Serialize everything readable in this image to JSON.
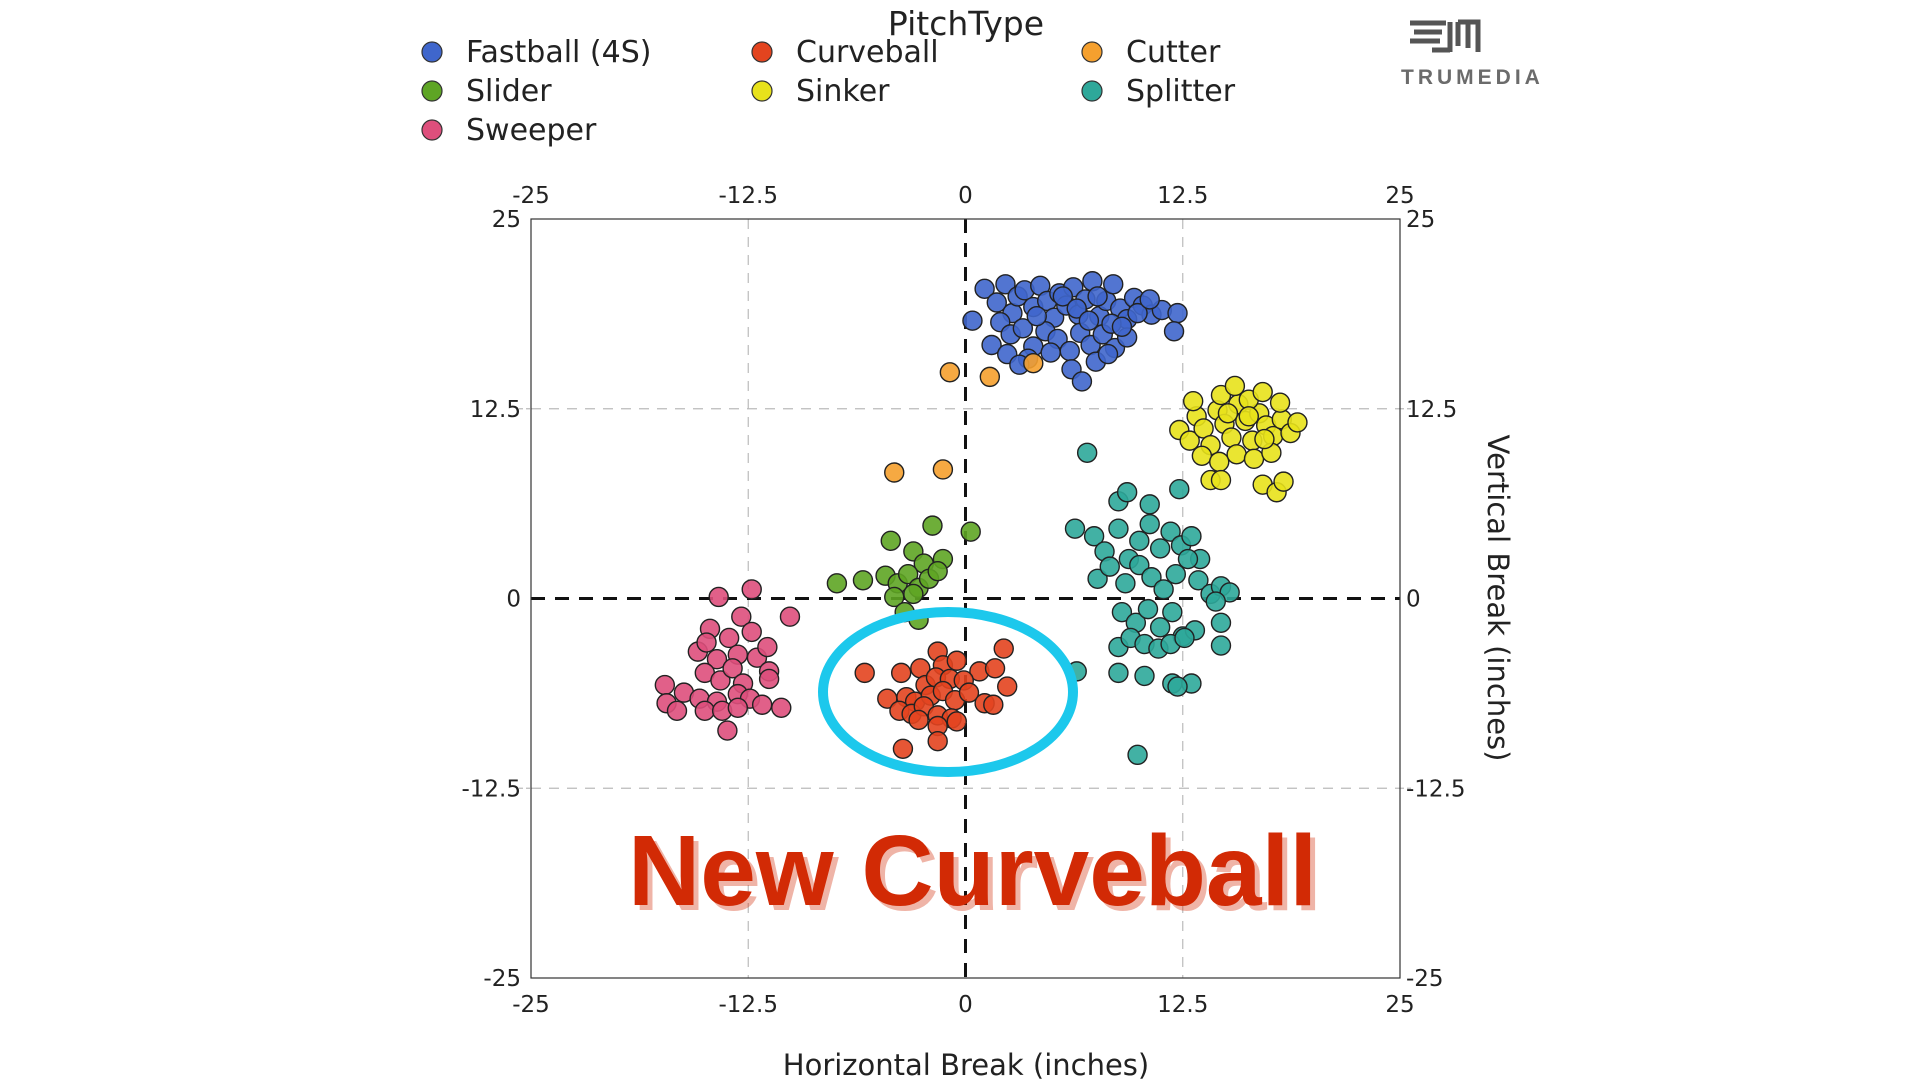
{
  "chart_data": {
    "type": "scatter",
    "legend": {
      "title": "PitchType",
      "position": "top",
      "entries": [
        {
          "name": "Fastball (4S)",
          "color": "#3f66cc"
        },
        {
          "name": "Curveball",
          "color": "#e3441f"
        },
        {
          "name": "Cutter",
          "color": "#f5a02e"
        },
        {
          "name": "Slider",
          "color": "#5ea524"
        },
        {
          "name": "Sinker",
          "color": "#e8e21b"
        },
        {
          "name": "Splitter",
          "color": "#2ea89a"
        },
        {
          "name": "Sweeper",
          "color": "#de4f7c"
        }
      ]
    },
    "xlabel": "Horizontal Break (inches)",
    "ylabel": "Vertical Break (inches)",
    "xlim": [
      -25,
      25
    ],
    "ylim": [
      -25,
      25
    ],
    "x_ticks": [
      "-25",
      "-12.5",
      "0",
      "12.5",
      "25"
    ],
    "y_ticks": [
      "25",
      "12.5",
      "0",
      "-12.5",
      "-25"
    ],
    "grid": true,
    "zero_lines": "dashed",
    "annotation": {
      "text": "New Curveball",
      "circled_series": "Curveball"
    },
    "logo_text": "TRUMEDIA",
    "series": [
      {
        "name": "Fastball (4S)",
        "color": "#3f66cc",
        "points": [
          [
            0.4,
            18.3
          ],
          [
            1.1,
            20.4
          ],
          [
            1.8,
            19.5
          ],
          [
            2.3,
            20.7
          ],
          [
            2.7,
            18.8
          ],
          [
            3.0,
            19.9
          ],
          [
            3.4,
            20.3
          ],
          [
            3.9,
            19.2
          ],
          [
            4.3,
            20.6
          ],
          [
            4.7,
            19.6
          ],
          [
            5.1,
            18.5
          ],
          [
            5.4,
            20.1
          ],
          [
            5.8,
            19.3
          ],
          [
            6.2,
            20.5
          ],
          [
            6.5,
            18.7
          ],
          [
            6.9,
            19.7
          ],
          [
            7.3,
            20.9
          ],
          [
            7.7,
            18.6
          ],
          [
            8.1,
            19.6
          ],
          [
            8.5,
            20.7
          ],
          [
            8.9,
            19.1
          ],
          [
            9.3,
            18.4
          ],
          [
            9.7,
            19.8
          ],
          [
            10.2,
            19.3
          ],
          [
            10.7,
            18.7
          ],
          [
            11.3,
            19.0
          ],
          [
            12.2,
            18.8
          ],
          [
            12.0,
            17.6
          ],
          [
            2.0,
            18.2
          ],
          [
            2.6,
            17.4
          ],
          [
            3.3,
            17.8
          ],
          [
            3.9,
            16.6
          ],
          [
            4.6,
            17.6
          ],
          [
            5.3,
            17.1
          ],
          [
            6.0,
            16.3
          ],
          [
            6.6,
            17.5
          ],
          [
            7.2,
            16.7
          ],
          [
            7.9,
            17.4
          ],
          [
            8.6,
            16.5
          ],
          [
            9.3,
            17.2
          ],
          [
            1.5,
            16.7
          ],
          [
            2.4,
            16.1
          ],
          [
            3.6,
            15.8
          ],
          [
            4.9,
            16.2
          ],
          [
            6.1,
            15.1
          ],
          [
            6.7,
            14.3
          ],
          [
            7.5,
            15.6
          ],
          [
            8.2,
            16.1
          ],
          [
            5.6,
            19.9
          ],
          [
            6.4,
            19.1
          ],
          [
            7.1,
            18.3
          ],
          [
            7.6,
            19.9
          ],
          [
            8.4,
            18.1
          ],
          [
            9.0,
            17.9
          ],
          [
            4.1,
            18.6
          ],
          [
            3.1,
            15.4
          ],
          [
            9.9,
            18.8
          ],
          [
            10.6,
            19.7
          ]
        ]
      },
      {
        "name": "Cutter",
        "color": "#f5a02e",
        "points": [
          [
            -0.9,
            14.9
          ],
          [
            1.4,
            14.6
          ],
          [
            3.9,
            15.5
          ],
          [
            -4.1,
            8.3
          ],
          [
            -1.3,
            8.5
          ]
        ]
      },
      {
        "name": "Sinker",
        "color": "#e8e21b",
        "points": [
          [
            12.3,
            11.1
          ],
          [
            12.9,
            10.4
          ],
          [
            13.3,
            12.0
          ],
          [
            13.7,
            11.2
          ],
          [
            14.1,
            10.1
          ],
          [
            14.5,
            12.4
          ],
          [
            14.9,
            11.5
          ],
          [
            15.3,
            10.6
          ],
          [
            15.7,
            12.8
          ],
          [
            16.1,
            11.7
          ],
          [
            16.5,
            10.4
          ],
          [
            16.9,
            12.2
          ],
          [
            17.3,
            11.4
          ],
          [
            17.7,
            10.7
          ],
          [
            18.2,
            11.8
          ],
          [
            18.7,
            10.9
          ],
          [
            19.1,
            11.6
          ],
          [
            14.7,
            13.4
          ],
          [
            15.5,
            14.0
          ],
          [
            16.3,
            13.1
          ],
          [
            17.1,
            13.6
          ],
          [
            18.1,
            12.9
          ],
          [
            13.6,
            9.4
          ],
          [
            14.6,
            9.0
          ],
          [
            15.6,
            9.5
          ],
          [
            16.6,
            9.2
          ],
          [
            17.6,
            9.6
          ],
          [
            14.1,
            7.8
          ],
          [
            14.7,
            7.8
          ],
          [
            17.1,
            7.5
          ],
          [
            17.9,
            7.0
          ],
          [
            18.3,
            7.7
          ],
          [
            13.1,
            13.0
          ],
          [
            15.1,
            12.2
          ],
          [
            16.3,
            12.0
          ],
          [
            17.2,
            10.5
          ]
        ]
      },
      {
        "name": "Splitter",
        "color": "#2ea89a",
        "points": [
          [
            7.0,
            9.6
          ],
          [
            8.8,
            6.4
          ],
          [
            9.3,
            7.0
          ],
          [
            10.6,
            6.2
          ],
          [
            12.3,
            7.2
          ],
          [
            6.3,
            4.6
          ],
          [
            7.4,
            4.1
          ],
          [
            8.0,
            3.1
          ],
          [
            8.8,
            4.6
          ],
          [
            9.4,
            2.6
          ],
          [
            10.0,
            3.8
          ],
          [
            10.6,
            4.9
          ],
          [
            11.2,
            3.3
          ],
          [
            11.8,
            4.4
          ],
          [
            12.4,
            3.5
          ],
          [
            13.0,
            4.1
          ],
          [
            13.5,
            2.6
          ],
          [
            7.6,
            1.3
          ],
          [
            8.3,
            2.1
          ],
          [
            9.2,
            1.0
          ],
          [
            10.0,
            2.2
          ],
          [
            10.7,
            1.4
          ],
          [
            11.4,
            0.6
          ],
          [
            12.1,
            1.6
          ],
          [
            12.8,
            2.6
          ],
          [
            13.4,
            1.2
          ],
          [
            14.1,
            0.3
          ],
          [
            14.7,
            0.8
          ],
          [
            15.2,
            0.4
          ],
          [
            14.4,
            -0.2
          ],
          [
            9.0,
            -0.9
          ],
          [
            9.8,
            -1.6
          ],
          [
            10.5,
            -0.7
          ],
          [
            11.2,
            -1.9
          ],
          [
            11.9,
            -0.9
          ],
          [
            12.5,
            -2.5
          ],
          [
            13.2,
            -2.1
          ],
          [
            8.8,
            -3.2
          ],
          [
            9.5,
            -2.6
          ],
          [
            10.3,
            -3.0
          ],
          [
            11.1,
            -3.3
          ],
          [
            11.8,
            -3.0
          ],
          [
            12.6,
            -2.6
          ],
          [
            14.7,
            -1.6
          ],
          [
            14.7,
            -3.1
          ],
          [
            6.4,
            -4.8
          ],
          [
            8.8,
            -4.9
          ],
          [
            10.3,
            -5.1
          ],
          [
            11.9,
            -5.6
          ],
          [
            13.0,
            -5.6
          ],
          [
            12.2,
            -5.8
          ],
          [
            9.9,
            -10.3
          ]
        ]
      },
      {
        "name": "Slider",
        "color": "#5ea524",
        "points": [
          [
            -1.9,
            4.8
          ],
          [
            0.3,
            4.4
          ],
          [
            -4.3,
            3.8
          ],
          [
            -3.0,
            3.1
          ],
          [
            -2.4,
            2.3
          ],
          [
            -1.3,
            2.6
          ],
          [
            -5.9,
            1.2
          ],
          [
            -4.6,
            1.5
          ],
          [
            -3.9,
            1.0
          ],
          [
            -3.3,
            1.6
          ],
          [
            -2.7,
            0.7
          ],
          [
            -2.1,
            1.3
          ],
          [
            -1.6,
            1.8
          ],
          [
            -4.1,
            0.1
          ],
          [
            -3.0,
            0.3
          ],
          [
            -3.5,
            -0.9
          ],
          [
            -2.7,
            -1.4
          ],
          [
            -7.4,
            1.0
          ]
        ]
      },
      {
        "name": "Curveball",
        "color": "#e3441f",
        "points": [
          [
            -5.8,
            -4.9
          ],
          [
            -1.6,
            -3.5
          ],
          [
            2.2,
            -3.3
          ],
          [
            -3.7,
            -4.9
          ],
          [
            -2.6,
            -4.6
          ],
          [
            -1.3,
            -4.4
          ],
          [
            -0.5,
            -4.1
          ],
          [
            0.8,
            -4.8
          ],
          [
            1.7,
            -4.6
          ],
          [
            -2.3,
            -5.7
          ],
          [
            -1.7,
            -5.2
          ],
          [
            -0.9,
            -5.3
          ],
          [
            -0.1,
            -5.4
          ],
          [
            2.4,
            -5.8
          ],
          [
            -4.5,
            -6.6
          ],
          [
            -3.4,
            -6.5
          ],
          [
            -2.9,
            -6.8
          ],
          [
            -2.0,
            -6.4
          ],
          [
            -1.3,
            -6.1
          ],
          [
            -0.6,
            -6.7
          ],
          [
            0.2,
            -6.2
          ],
          [
            1.1,
            -6.9
          ],
          [
            -3.8,
            -7.4
          ],
          [
            -3.1,
            -7.6
          ],
          [
            -2.4,
            -7.1
          ],
          [
            -1.6,
            -7.7
          ],
          [
            -0.8,
            -7.9
          ],
          [
            -2.7,
            -8.0
          ],
          [
            -1.6,
            -8.4
          ],
          [
            -0.5,
            -8.1
          ],
          [
            1.6,
            -7.0
          ],
          [
            -3.6,
            -9.9
          ],
          [
            -1.6,
            -9.4
          ]
        ]
      },
      {
        "name": "Sweeper",
        "color": "#de4f7c",
        "points": [
          [
            -12.3,
            0.6
          ],
          [
            -14.2,
            0.1
          ],
          [
            -12.9,
            -1.2
          ],
          [
            -10.1,
            -1.2
          ],
          [
            -14.7,
            -2.0
          ],
          [
            -13.6,
            -2.6
          ],
          [
            -12.3,
            -2.2
          ],
          [
            -15.4,
            -3.5
          ],
          [
            -14.9,
            -2.9
          ],
          [
            -14.3,
            -4.0
          ],
          [
            -13.1,
            -3.7
          ],
          [
            -12.0,
            -3.9
          ],
          [
            -11.4,
            -3.2
          ],
          [
            -15.0,
            -4.9
          ],
          [
            -14.1,
            -5.4
          ],
          [
            -13.4,
            -4.6
          ],
          [
            -12.8,
            -5.6
          ],
          [
            -11.3,
            -4.8
          ],
          [
            -11.3,
            -5.3
          ],
          [
            -17.3,
            -5.7
          ],
          [
            -16.2,
            -6.2
          ],
          [
            -15.3,
            -6.6
          ],
          [
            -14.3,
            -6.8
          ],
          [
            -13.1,
            -6.3
          ],
          [
            -12.4,
            -6.6
          ],
          [
            -17.2,
            -6.9
          ],
          [
            -16.6,
            -7.4
          ],
          [
            -15.0,
            -7.4
          ],
          [
            -14.0,
            -7.4
          ],
          [
            -13.1,
            -7.2
          ],
          [
            -11.7,
            -7.0
          ],
          [
            -10.6,
            -7.2
          ],
          [
            -13.7,
            -8.7
          ]
        ]
      }
    ]
  }
}
